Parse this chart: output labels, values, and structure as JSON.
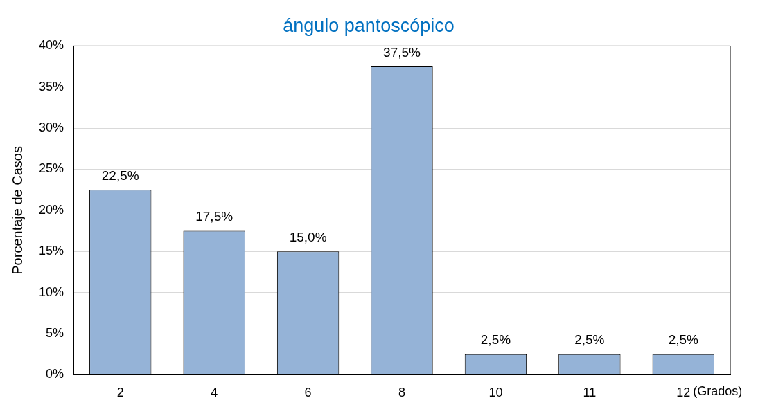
{
  "chart_data": {
    "type": "bar",
    "title": "ángulo pantoscópico",
    "xlabel": "(Grados)",
    "ylabel": "Porcentaje de Casos",
    "categories": [
      "2",
      "4",
      "6",
      "8",
      "10",
      "11",
      "12"
    ],
    "values": [
      22.5,
      17.5,
      15,
      37.5,
      2.5,
      2.5,
      2.5
    ],
    "value_labels": [
      "22,5%",
      "17,5%",
      "15,0%",
      "37,5%",
      "2,5%",
      "2,5%",
      "2,5%"
    ],
    "color": "#95b3d7",
    "ylim": [
      0,
      40
    ],
    "yticks": [
      {
        "value": 0,
        "label": "0%"
      },
      {
        "value": 5,
        "label": "5%"
      },
      {
        "value": 10,
        "label": "10%"
      },
      {
        "value": 15,
        "label": "15%"
      },
      {
        "value": 20,
        "label": "20%"
      },
      {
        "value": 25,
        "label": "25%"
      },
      {
        "value": 30,
        "label": "30%"
      },
      {
        "value": 35,
        "label": "35%"
      },
      {
        "value": 40,
        "label": "40%"
      }
    ],
    "grid": "y",
    "legend": false
  }
}
